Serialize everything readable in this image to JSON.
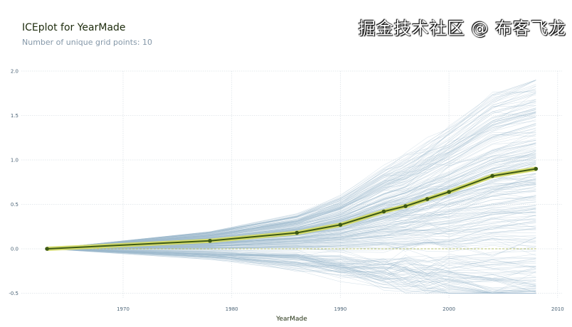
{
  "chart_data": {
    "type": "line",
    "title": "ICEplot for YearMade",
    "subtitle": "Number of unique grid points: 10",
    "xlabel": "YearMade",
    "ylabel": "",
    "xlim": [
      1960.6,
      2011.3
    ],
    "ylim": [
      -0.55,
      2.0
    ],
    "xticks": [
      1970,
      1980,
      1990,
      2000,
      2010
    ],
    "yticks": [
      -0.5,
      0.0,
      0.5,
      1.0,
      1.5,
      2.0
    ],
    "ytick_labels": [
      "-0.5",
      "0.0",
      "0.5",
      "1.0",
      "1.5",
      "2.0"
    ],
    "grid": true,
    "series": [
      {
        "role": "average (PDP) line",
        "x": [
          1963,
          1978,
          1986,
          1990,
          1994,
          1996,
          1998,
          2000,
          2004,
          2008
        ],
        "y": [
          0.0,
          0.09,
          0.18,
          0.27,
          0.42,
          0.48,
          0.56,
          0.64,
          0.82,
          0.9
        ],
        "color": "#3d5a14",
        "highlight_color": "#d4db6e"
      }
    ],
    "ice_lines_color": "#9bb8cc",
    "zero_line_color": "#b5c06a"
  },
  "watermark": "掘金技术社区 @ 布客飞龙"
}
